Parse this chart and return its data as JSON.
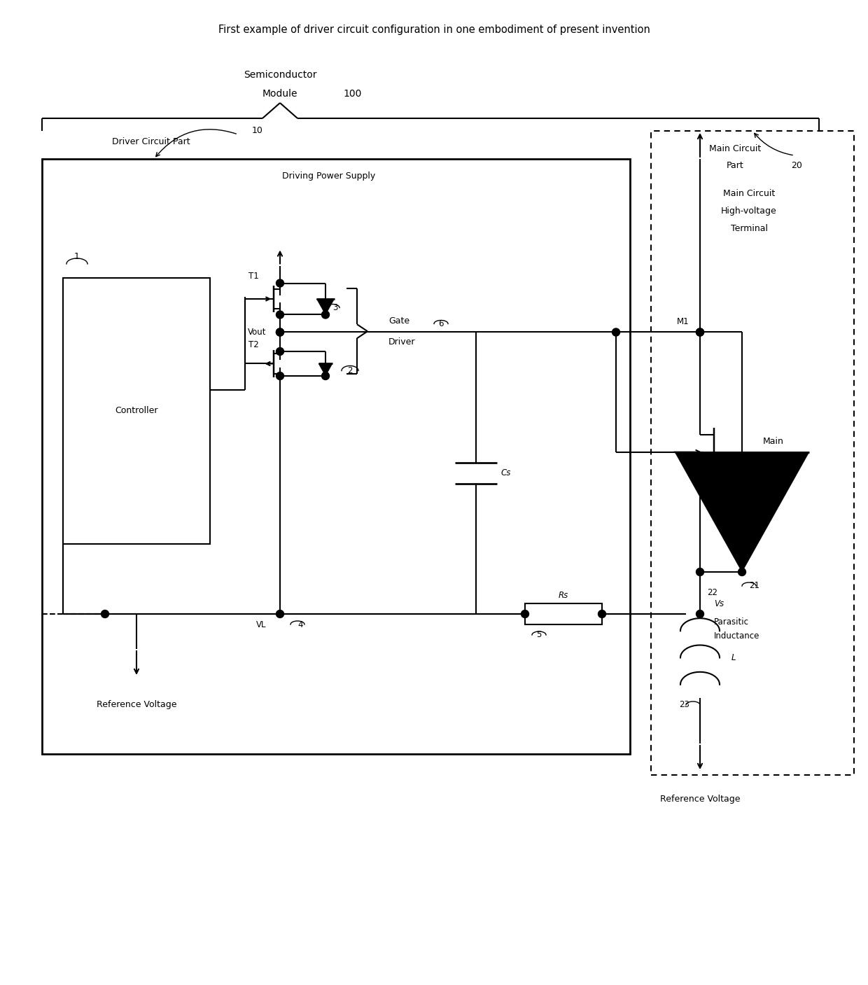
{
  "title": "First example of driver circuit configuration in one embodiment of present invention",
  "bg_color": "#ffffff",
  "lc": "#000000",
  "figsize": [
    12.4,
    14.07
  ],
  "dpi": 100,
  "xlim": [
    0,
    124
  ],
  "ylim": [
    0,
    140.7
  ]
}
